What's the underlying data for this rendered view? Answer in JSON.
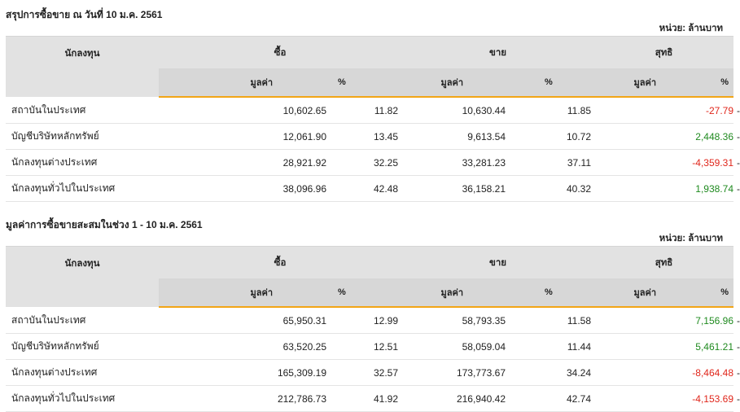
{
  "sections": [
    {
      "title": "สรุปการซื้อขาย ณ วันที่ 10 ม.ค. 2561",
      "unit": "หน่วย: ล้านบาท",
      "headers": {
        "investor": "นักลงทุน",
        "buy": "ซื้อ",
        "sell": "ขาย",
        "net": "สุทธิ",
        "value": "มูลค่า",
        "percent": "%"
      },
      "rows": [
        {
          "name": "สถาบันในประเทศ",
          "buy_value": "10,602.65",
          "buy_pct": "11.82",
          "sell_value": "10,630.44",
          "sell_pct": "11.85",
          "net_value": "-27.79",
          "net_sign": "neg",
          "net_pct": "-"
        },
        {
          "name": "บัญชีบริษัทหลักทรัพย์",
          "buy_value": "12,061.90",
          "buy_pct": "13.45",
          "sell_value": "9,613.54",
          "sell_pct": "10.72",
          "net_value": "2,448.36",
          "net_sign": "pos",
          "net_pct": "-"
        },
        {
          "name": "นักลงทุนต่างประเทศ",
          "buy_value": "28,921.92",
          "buy_pct": "32.25",
          "sell_value": "33,281.23",
          "sell_pct": "37.11",
          "net_value": "-4,359.31",
          "net_sign": "neg",
          "net_pct": "-"
        },
        {
          "name": "นักลงทุนทั่วไปในประเทศ",
          "buy_value": "38,096.96",
          "buy_pct": "42.48",
          "sell_value": "36,158.21",
          "sell_pct": "40.32",
          "net_value": "1,938.74",
          "net_sign": "pos",
          "net_pct": "-"
        }
      ]
    },
    {
      "title": "มูลค่าการซื้อขายสะสมในช่วง 1 - 10 ม.ค. 2561",
      "unit": "หน่วย: ล้านบาท",
      "headers": {
        "investor": "นักลงทุน",
        "buy": "ซื้อ",
        "sell": "ขาย",
        "net": "สุทธิ",
        "value": "มูลค่า",
        "percent": "%"
      },
      "rows": [
        {
          "name": "สถาบันในประเทศ",
          "buy_value": "65,950.31",
          "buy_pct": "12.99",
          "sell_value": "58,793.35",
          "sell_pct": "11.58",
          "net_value": "7,156.96",
          "net_sign": "pos",
          "net_pct": "-"
        },
        {
          "name": "บัญชีบริษัทหลักทรัพย์",
          "buy_value": "63,520.25",
          "buy_pct": "12.51",
          "sell_value": "58,059.04",
          "sell_pct": "11.44",
          "net_value": "5,461.21",
          "net_sign": "pos",
          "net_pct": "-"
        },
        {
          "name": "นักลงทุนต่างประเทศ",
          "buy_value": "165,309.19",
          "buy_pct": "32.57",
          "sell_value": "173,773.67",
          "sell_pct": "34.24",
          "net_value": "-8,464.48",
          "net_sign": "neg",
          "net_pct": "-"
        },
        {
          "name": "นักลงทุนทั่วไปในประเทศ",
          "buy_value": "212,786.73",
          "buy_pct": "41.92",
          "sell_value": "216,940.42",
          "sell_pct": "42.74",
          "net_value": "-4,153.69",
          "net_sign": "neg",
          "net_pct": "-"
        }
      ]
    }
  ]
}
